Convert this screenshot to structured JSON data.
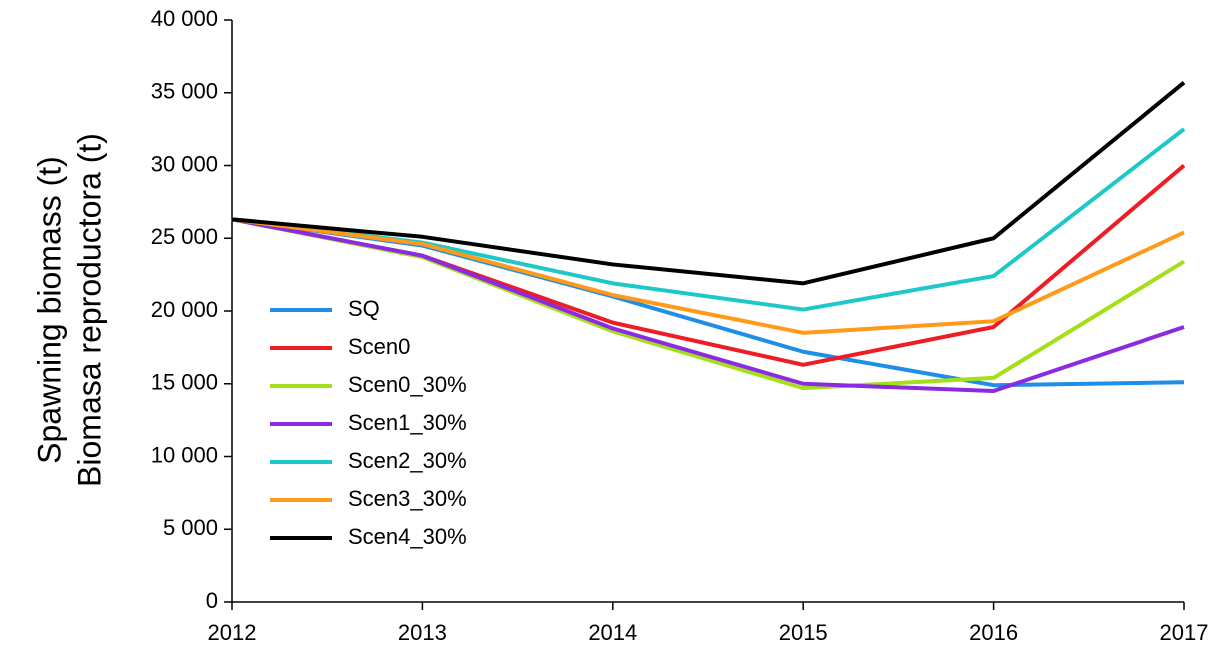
{
  "chart_data": {
    "type": "line",
    "y_label": [
      "Spawning  biomass (t)",
      "Biomasa reproductora (t)"
    ],
    "x": [
      2012,
      2013,
      2014,
      2015,
      2016,
      2017
    ],
    "xlim": [
      2012,
      2017
    ],
    "xticks": [
      2012,
      2013,
      2014,
      2015,
      2016,
      2017
    ],
    "ylim": [
      0,
      40000
    ],
    "yticks": [
      0,
      {
        "value": 5000,
        "label": "5 000"
      },
      {
        "value": 10000,
        "label": "10 000"
      },
      {
        "value": 15000,
        "label": "15 000"
      },
      {
        "value": 20000,
        "label": "20 000"
      },
      {
        "value": 25000,
        "label": "25 000"
      },
      {
        "value": 30000,
        "label": "30 000"
      },
      {
        "value": 35000,
        "label": "35 000"
      },
      {
        "value": 40000,
        "label": "40 000"
      }
    ],
    "legend": "left",
    "series": [
      {
        "name": "SQ",
        "color": "#1e8ee8",
        "values": [
          26300,
          24500,
          21000,
          17200,
          14900,
          15100
        ]
      },
      {
        "name": "Scen0",
        "color": "#ee1c24",
        "values": [
          26300,
          23800,
          19200,
          16300,
          18900,
          30000
        ]
      },
      {
        "name": "Scen0_30%",
        "color": "#a3e01a",
        "values": [
          26300,
          23700,
          18600,
          14700,
          15400,
          23400
        ]
      },
      {
        "name": "Scen1_30%",
        "color": "#8a2be2",
        "values": [
          26300,
          23800,
          18800,
          15000,
          14500,
          18900
        ]
      },
      {
        "name": "Scen2_30%",
        "color": "#1fc8c8",
        "values": [
          26300,
          24700,
          21900,
          20100,
          22400,
          32500
        ]
      },
      {
        "name": "Scen3_30%",
        "color": "#ff9a1a",
        "values": [
          26300,
          24600,
          21100,
          18500,
          19300,
          25400
        ]
      },
      {
        "name": "Scen4_30%",
        "color": "#000000",
        "values": [
          26300,
          25100,
          23200,
          21900,
          25000,
          35700
        ]
      }
    ]
  }
}
